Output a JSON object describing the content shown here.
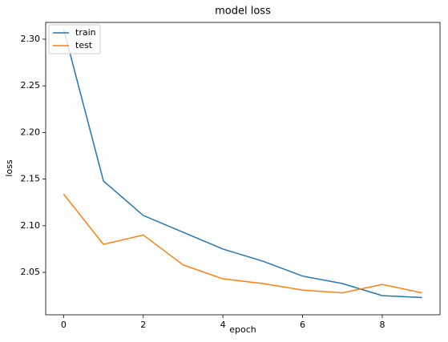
{
  "chart_data": {
    "type": "line",
    "title": "model loss",
    "x_label": "epoch",
    "y_label": "loss",
    "x": [
      0,
      1,
      2,
      3,
      4,
      5,
      6,
      7,
      8,
      9
    ],
    "series": [
      {
        "name": "train",
        "color": "#1f77b4",
        "values": [
          2.311,
          2.148,
          2.111,
          2.093,
          2.075,
          2.062,
          2.046,
          2.038,
          2.025,
          2.023
        ]
      },
      {
        "name": "test",
        "color": "#ff7f0e",
        "values": [
          2.134,
          2.08,
          2.09,
          2.058,
          2.043,
          2.038,
          2.031,
          2.028,
          2.037,
          2.028
        ]
      }
    ],
    "xlim": [
      -0.45,
      9.45
    ],
    "xticks": [
      0,
      2,
      4,
      6,
      8
    ],
    "ylim": [
      2.0045,
      2.318
    ],
    "yticks": [
      2.05,
      {
        "value": 2.1,
        "label": "2.10"
      },
      2.15,
      {
        "value": 2.2,
        "label": "2.20"
      },
      2.25,
      {
        "value": 2.3,
        "label": "2.30"
      }
    ],
    "legend": "upper left"
  }
}
